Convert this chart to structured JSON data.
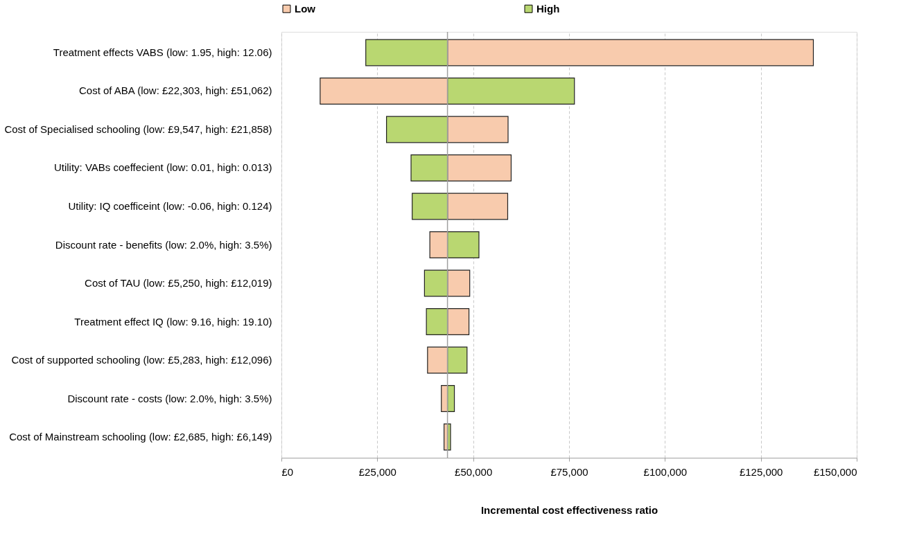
{
  "chart_data": {
    "type": "bar",
    "orientation": "horizontal",
    "categories": [
      "Treatment effects VABS (low: 1.95, high: 12.06)",
      "Cost of ABA (low: £22,303, high: £51,062)",
      "Cost of Specialised schooling (low: £9,547, high: £21,858)",
      "Utility: VABs coeffecient (low: 0.01, high: 0.013)",
      "Utility: IQ coefficeint (low: -0.06, high: 0.124)",
      "Discount rate - benefits (low: 2.0%, high: 3.5%)",
      "Cost of TAU (low: £5,250, high: £12,019)",
      "Treatment effect IQ (low: 9.16, high: 19.10)",
      "Cost of supported schooling (low: £5,283, high: £12,096)",
      "Discount rate - costs (low: 2.0%, high: 3.5%)",
      "Cost of Mainstream schooling (low: £2,685, high: £6,149)"
    ],
    "series": [
      {
        "name": "Low",
        "color": "#f8cbad",
        "base": [
          43300,
          10100,
          43300,
          43300,
          43300,
          38700,
          43300,
          43300,
          38100,
          41700,
          42400
        ],
        "values": [
          95400,
          33200,
          15800,
          16600,
          15700,
          4600,
          5800,
          5600,
          5200,
          1600,
          900
        ]
      },
      {
        "name": "High",
        "color": "#b9d771",
        "base": [
          22000,
          43300,
          27400,
          33800,
          34100,
          43300,
          37300,
          37800,
          43300,
          43300,
          43300
        ],
        "values": [
          21300,
          33100,
          15900,
          9500,
          9200,
          8200,
          6000,
          5500,
          5100,
          1800,
          800
        ]
      }
    ],
    "xlim": [
      0,
      150000
    ],
    "xticks": [
      {
        "value": 0,
        "label": "£0"
      },
      {
        "value": 25000,
        "label": "£25,000"
      },
      {
        "value": 50000,
        "label": "£50,000"
      },
      {
        "value": 75000,
        "label": "£75,000"
      },
      {
        "value": 100000,
        "label": "£100,000"
      },
      {
        "value": 125000,
        "label": "£125,000"
      },
      {
        "value": 150000,
        "label": "£150,000"
      }
    ],
    "xlabel": "Incremental cost effectiveness ratio",
    "ref_lines": [
      {
        "axis": "x",
        "value": 43300,
        "color": "#a0a0a0"
      }
    ],
    "grid": "x",
    "line_style": "dashed",
    "legend": "top"
  }
}
